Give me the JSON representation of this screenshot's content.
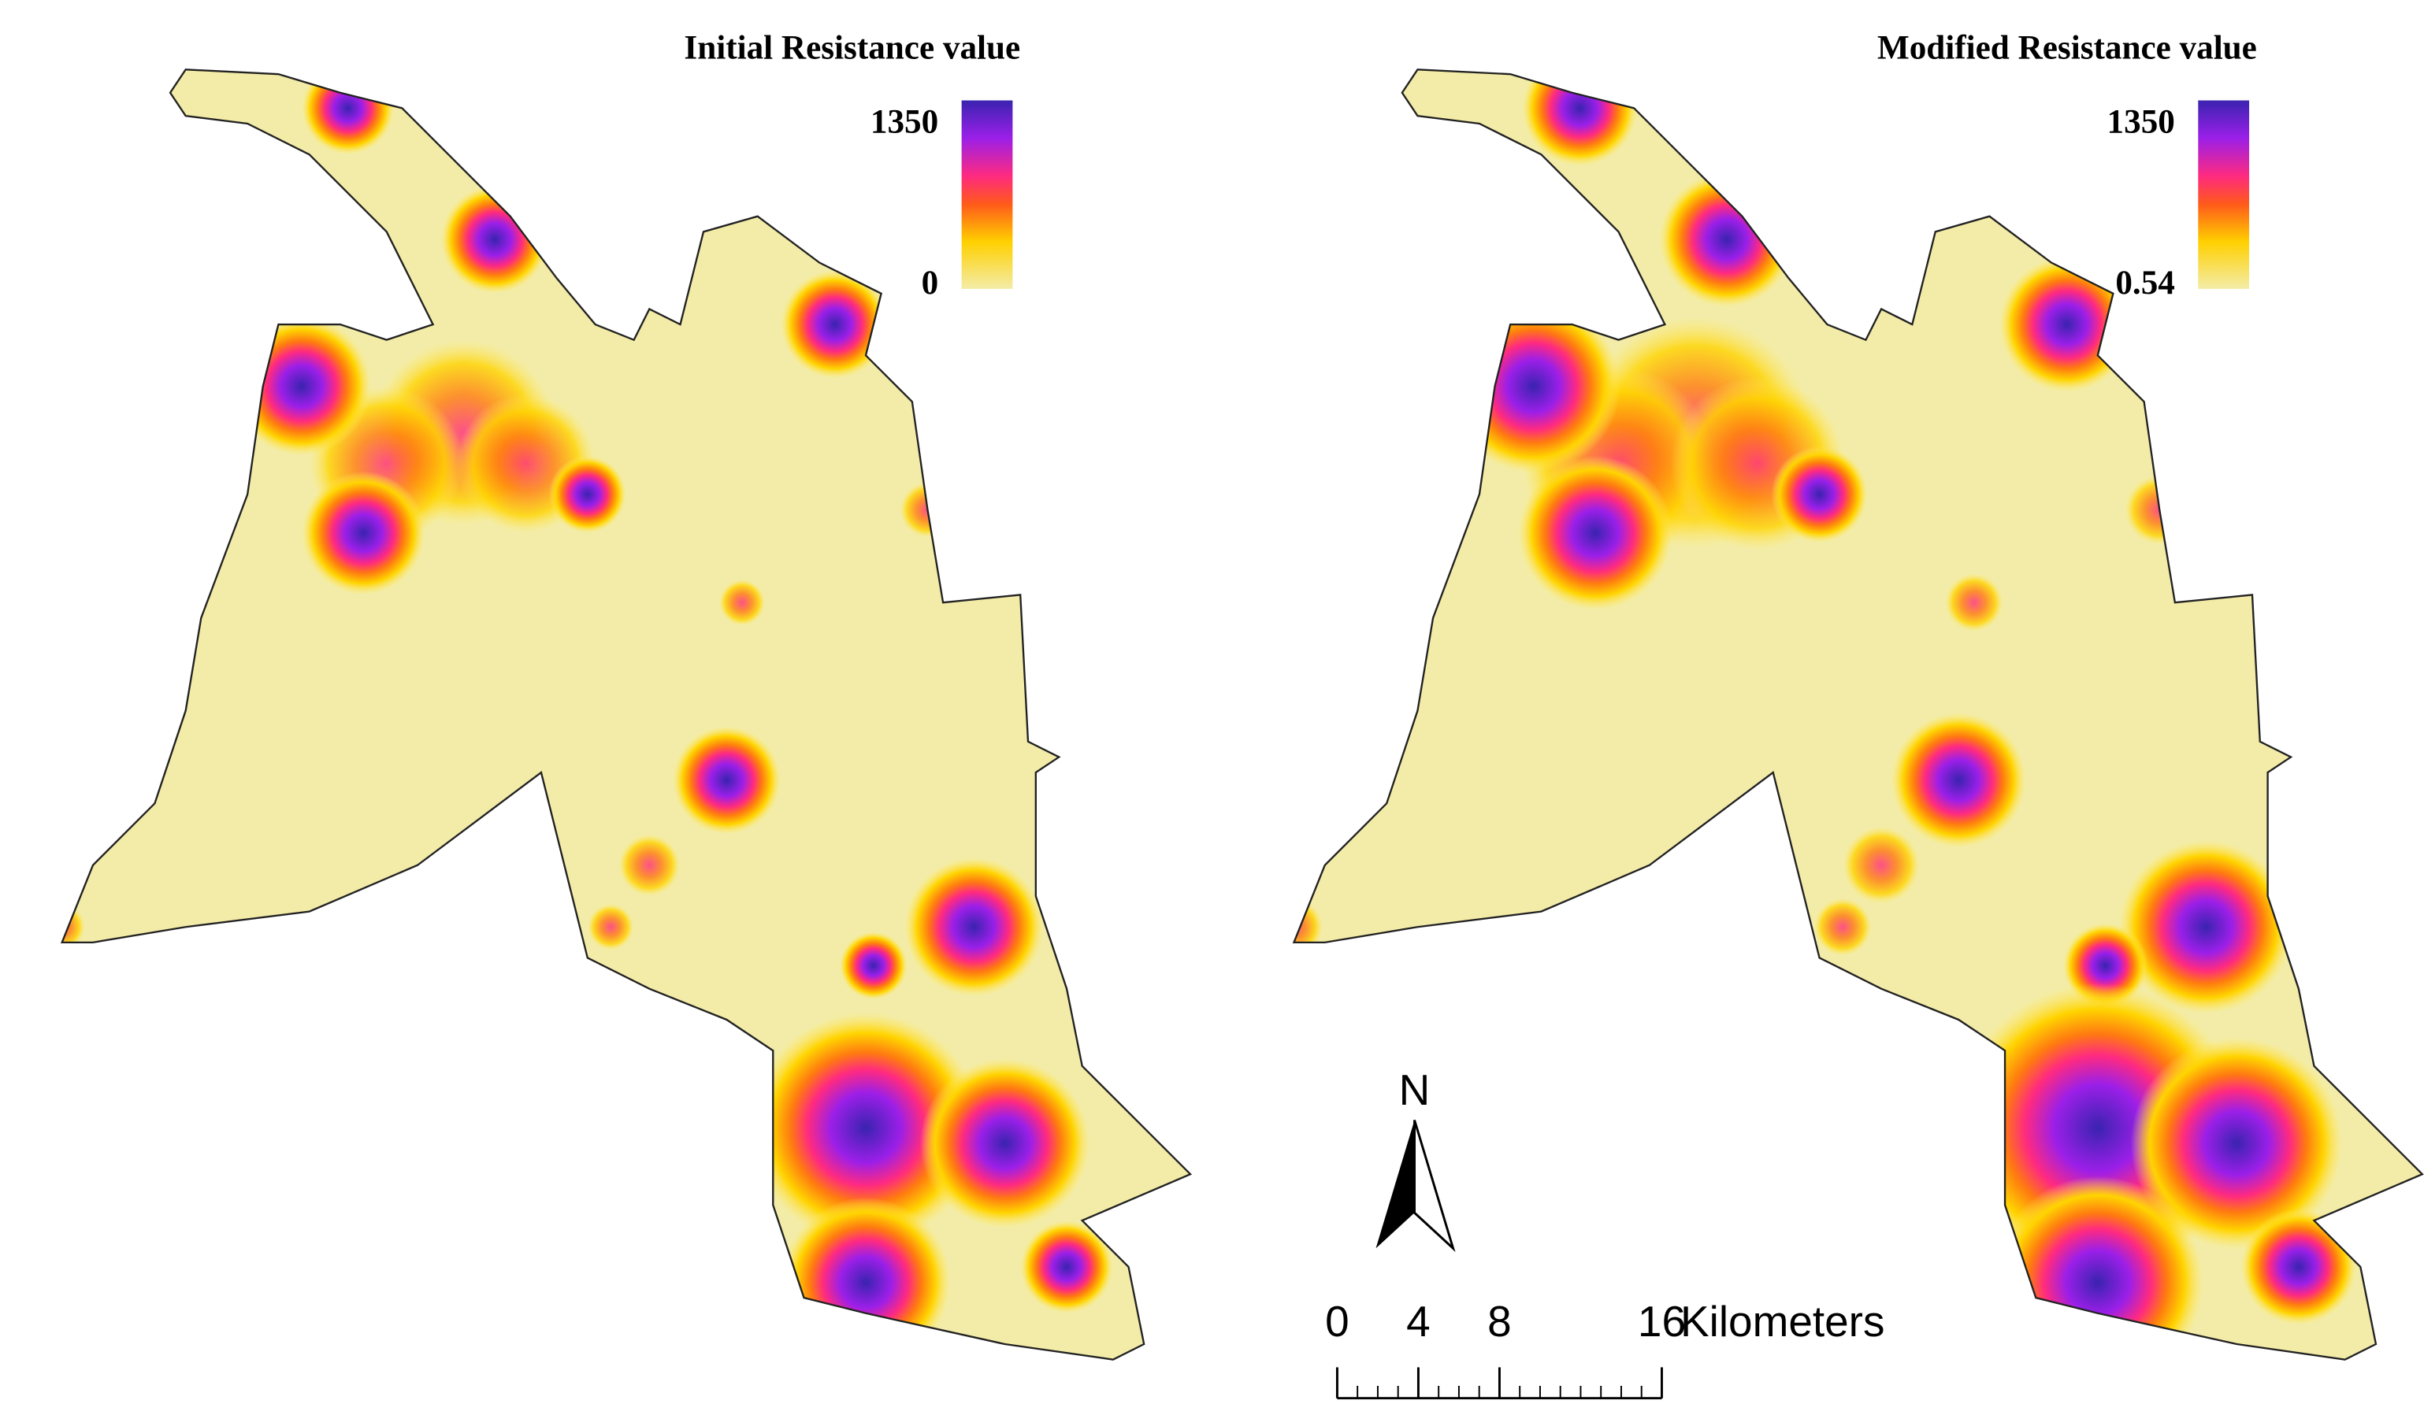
{
  "maps": [
    {
      "title": "Initial Resistance value",
      "legend": {
        "max": 1350,
        "min": 0
      }
    },
    {
      "title": "Modified Resistance value",
      "legend": {
        "max": 1350,
        "min": 0.54
      }
    }
  ],
  "north_arrow": {
    "label": "N"
  },
  "scale_bar": {
    "ticks": [
      0,
      4,
      8,
      16
    ],
    "unit": "Kilometers"
  }
}
